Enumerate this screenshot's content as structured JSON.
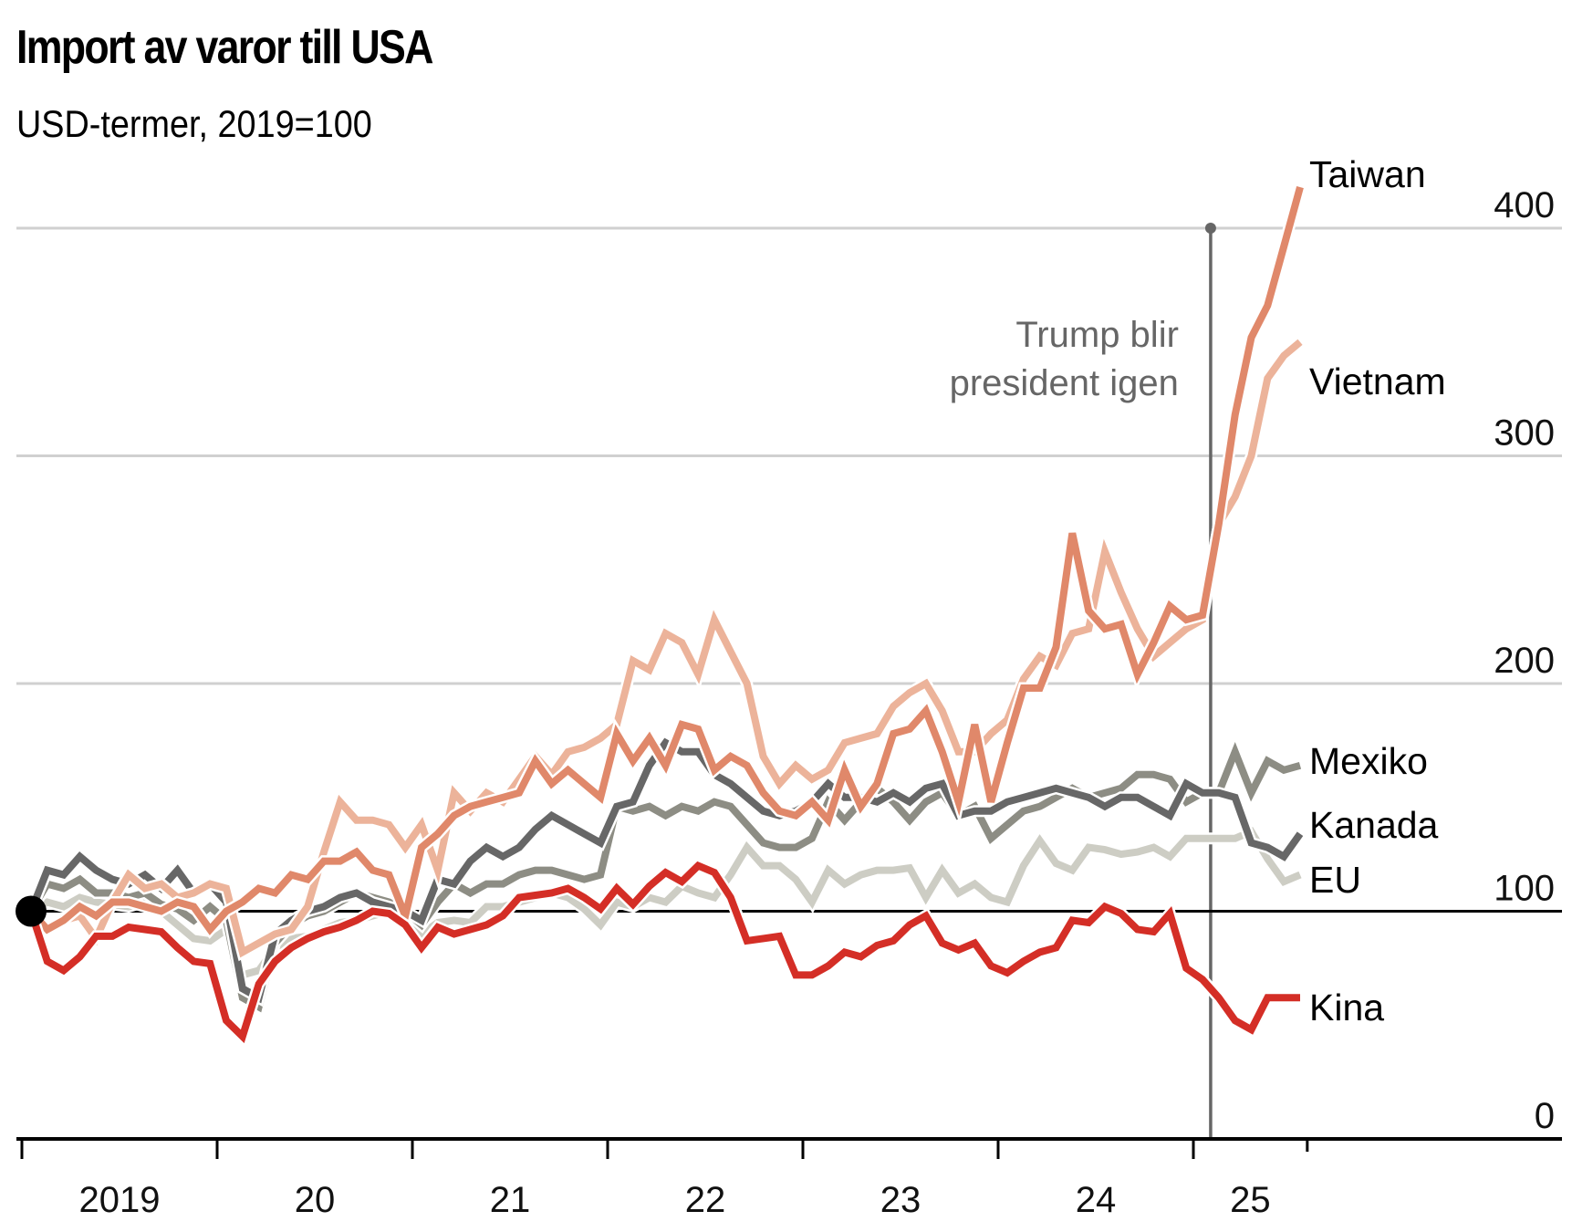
{
  "header": {
    "title": "Import av varor till USA",
    "subtitle": "USD-termer, 2019=100"
  },
  "chart_data": {
    "type": "line",
    "title": "Import av varor till USA",
    "subtitle": "USD-termer, 2019=100",
    "xlabel": "",
    "ylabel": "",
    "ylim": [
      0,
      400
    ],
    "yticks": [
      0,
      100,
      200,
      300,
      400
    ],
    "ytick_labels": [
      "0",
      "100",
      "200",
      "300",
      "400"
    ],
    "xticks": [
      "2019",
      "20",
      "21",
      "22",
      "23",
      "24",
      "25"
    ],
    "x_start": "2019-01",
    "x_frequency": "monthly",
    "grid": true,
    "baseline": 100,
    "baseline_marker": "start-dot",
    "annotation": {
      "text_lines": [
        "Trump blir",
        "president igen"
      ],
      "x": "2025-01",
      "color": "#666666"
    },
    "legend": "direct-labels-right",
    "series": [
      {
        "name": "EU",
        "color": "#cdcdc4",
        "values": [
          100,
          104,
          102,
          106,
          104,
          103,
          102,
          104,
          100,
          94,
          88,
          87,
          92,
          72,
          74,
          84,
          88,
          89,
          92,
          95,
          96,
          98,
          100,
          98,
          90,
          95,
          96,
          95,
          102,
          102,
          104,
          106,
          108,
          106,
          101,
          94,
          104,
          102,
          106,
          104,
          111,
          108,
          106,
          116,
          128,
          120,
          120,
          114,
          104,
          118,
          112,
          116,
          118,
          118,
          119,
          106,
          118,
          108,
          112,
          106,
          104,
          120,
          131,
          121,
          118,
          128,
          127,
          125,
          126,
          128,
          124,
          132,
          132,
          132,
          132,
          135,
          123,
          113,
          116
        ],
        "label_order": 6
      },
      {
        "name": "Mexiko",
        "color": "#8d8d84",
        "values": [
          100,
          112,
          110,
          114,
          108,
          108,
          106,
          108,
          103,
          101,
          96,
          102,
          96,
          62,
          58,
          86,
          94,
          98,
          100,
          104,
          108,
          106,
          104,
          100,
          94,
          104,
          112,
          108,
          112,
          112,
          116,
          118,
          118,
          116,
          114,
          116,
          146,
          144,
          146,
          142,
          146,
          144,
          148,
          146,
          138,
          130,
          128,
          128,
          132,
          148,
          140,
          148,
          154,
          148,
          140,
          148,
          152,
          142,
          146,
          132,
          138,
          144,
          146,
          150,
          154,
          150,
          152,
          154,
          160,
          160,
          158,
          148,
          152,
          152,
          170,
          152,
          166,
          162,
          164
        ],
        "label_order": 4
      },
      {
        "name": "Kanada",
        "color": "#676767",
        "values": [
          100,
          118,
          116,
          124,
          118,
          114,
          112,
          116,
          110,
          118,
          108,
          112,
          104,
          66,
          62,
          90,
          96,
          100,
          102,
          106,
          108,
          104,
          102,
          100,
          96,
          114,
          112,
          122,
          128,
          124,
          128,
          136,
          142,
          138,
          134,
          130,
          146,
          148,
          164,
          174,
          170,
          170,
          160,
          156,
          150,
          144,
          142,
          144,
          148,
          156,
          150,
          150,
          148,
          152,
          148,
          154,
          156,
          142,
          144,
          144,
          148,
          150,
          152,
          154,
          152,
          150,
          146,
          150,
          150,
          146,
          142,
          156,
          152,
          152,
          150,
          130,
          128,
          124,
          134
        ],
        "label_order": 5
      },
      {
        "name": "Vietnam",
        "color": "#ecb39a",
        "values": [
          100,
          92,
          96,
          98,
          88,
          104,
          116,
          110,
          112,
          106,
          108,
          112,
          110,
          82,
          86,
          90,
          92,
          102,
          126,
          148,
          140,
          140,
          138,
          128,
          138,
          118,
          152,
          144,
          152,
          148,
          158,
          168,
          160,
          170,
          172,
          176,
          182,
          210,
          206,
          222,
          218,
          204,
          228,
          214,
          200,
          168,
          156,
          164,
          158,
          162,
          174,
          176,
          178,
          190,
          196,
          200,
          188,
          170,
          170,
          178,
          184,
          202,
          212,
          208,
          222,
          224,
          258,
          240,
          224,
          212,
          218,
          224,
          228,
          270,
          282,
          300,
          334,
          344,
          350
        ],
        "label_order": 2
      },
      {
        "name": "Taiwan",
        "color": "#e0886a",
        "values": [
          100,
          92,
          96,
          102,
          98,
          104,
          104,
          102,
          100,
          104,
          102,
          92,
          100,
          104,
          110,
          108,
          116,
          114,
          122,
          122,
          126,
          118,
          116,
          98,
          128,
          134,
          142,
          146,
          148,
          150,
          152,
          166,
          156,
          162,
          156,
          150,
          178,
          166,
          176,
          164,
          182,
          180,
          162,
          168,
          164,
          152,
          144,
          142,
          148,
          140,
          162,
          146,
          156,
          178,
          180,
          188,
          170,
          148,
          182,
          148,
          174,
          198,
          198,
          216,
          266,
          232,
          224,
          226,
          204,
          218,
          234,
          228,
          230,
          270,
          318,
          352,
          366,
          392,
          418
        ],
        "label_order": 1
      },
      {
        "name": "Kina",
        "color": "#d42e26",
        "values": [
          100,
          78,
          74,
          80,
          89,
          89,
          93,
          92,
          91,
          84,
          78,
          77,
          52,
          45,
          68,
          78,
          84,
          88,
          91,
          93,
          96,
          100,
          99,
          94,
          84,
          93,
          90,
          92,
          94,
          98,
          106,
          107,
          108,
          110,
          106,
          101,
          110,
          103,
          111,
          117,
          113,
          120,
          117,
          106,
          87,
          88,
          89,
          72,
          72,
          76,
          82,
          80,
          85,
          87,
          94,
          98,
          86,
          83,
          86,
          76,
          73,
          78,
          82,
          84,
          96,
          95,
          102,
          99,
          92,
          91,
          99,
          75,
          70,
          62,
          52,
          48,
          62,
          62,
          62
        ],
        "label_order": 7
      }
    ],
    "end_labels": [
      {
        "series": "Taiwan",
        "text": "Taiwan"
      },
      {
        "series": "Vietnam",
        "text": "Vietnam"
      },
      {
        "series": "Mexiko",
        "text": "Mexiko"
      },
      {
        "series": "Kanada",
        "text": "Kanada"
      },
      {
        "series": "EU",
        "text": "EU"
      },
      {
        "series": "Kina",
        "text": "Kina"
      }
    ]
  }
}
